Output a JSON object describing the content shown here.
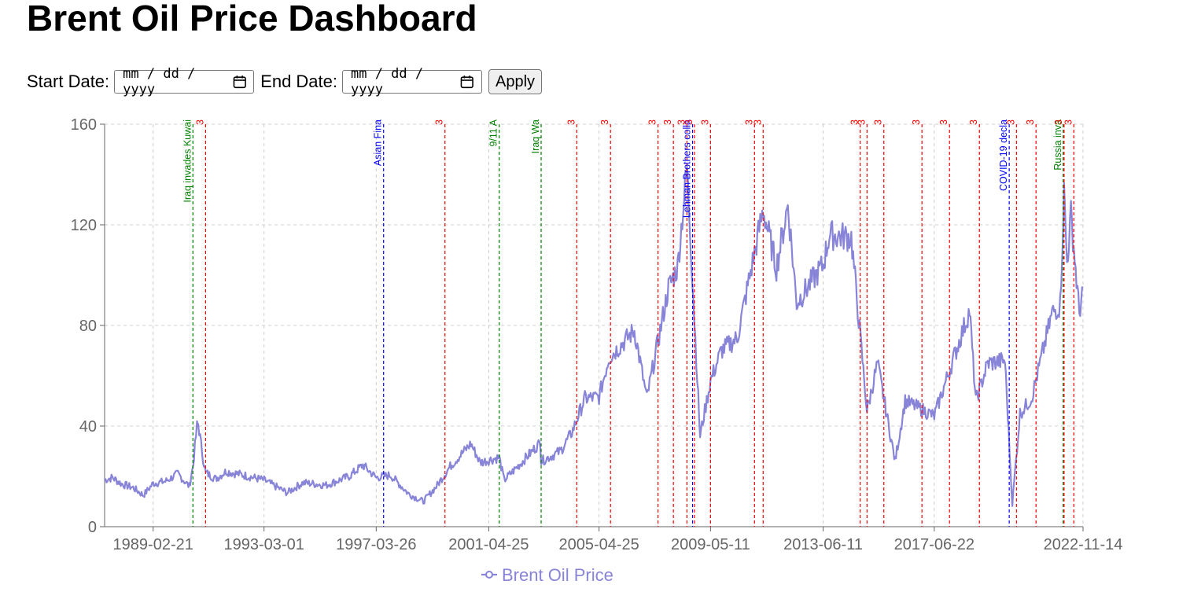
{
  "header": {
    "title": "Brent Oil Price Dashboard"
  },
  "filters": {
    "start_label": "Start Date:",
    "start_placeholder": "mm / dd / yyyy",
    "end_label": "End Date:",
    "end_placeholder": "mm / dd / yyyy",
    "apply_label": "Apply",
    "calendar_icon": "calendar-icon"
  },
  "chart_data": {
    "type": "line",
    "title": "",
    "xlabel": "",
    "ylabel": "",
    "xlim": [
      "1987-05-20",
      "2022-11-14"
    ],
    "ylim": [
      0,
      160
    ],
    "yticks": [
      0,
      40,
      80,
      120,
      160
    ],
    "xticks": [
      "1989-02-21",
      "1993-03-01",
      "1997-03-26",
      "2001-04-25",
      "2005-04-25",
      "2009-05-11",
      "2013-06-11",
      "2017-06-22",
      "2022-11-14"
    ],
    "grid": true,
    "legend_position": "bottom",
    "series": [
      {
        "name": "Brent Oil Price",
        "color": "#8884d8",
        "points": [
          [
            "1987-05-20",
            18.6
          ],
          [
            "1987-09-01",
            19.5
          ],
          [
            "1988-01-01",
            17.0
          ],
          [
            "1988-06-01",
            15.5
          ],
          [
            "1988-10-15",
            12.5
          ],
          [
            "1989-02-21",
            17.2
          ],
          [
            "1989-08-01",
            18.0
          ],
          [
            "1990-01-15",
            21.0
          ],
          [
            "1990-06-15",
            16.0
          ],
          [
            "1990-08-02",
            24.0
          ],
          [
            "1990-09-25",
            40.0
          ],
          [
            "1990-10-11",
            41.0
          ],
          [
            "1990-12-15",
            27.0
          ],
          [
            "1991-01-17",
            21.5
          ],
          [
            "1991-06-01",
            19.0
          ],
          [
            "1991-10-15",
            22.0
          ],
          [
            "1992-06-01",
            20.5
          ],
          [
            "1993-03-01",
            18.5
          ],
          [
            "1994-01-01",
            13.5
          ],
          [
            "1994-08-01",
            17.5
          ],
          [
            "1995-06-01",
            16.5
          ],
          [
            "1996-04-01",
            20.0
          ],
          [
            "1996-10-01",
            24.5
          ],
          [
            "1997-03-26",
            19.5
          ],
          [
            "1997-10-01",
            20.5
          ],
          [
            "1998-06-01",
            13.0
          ],
          [
            "1998-12-10",
            10.0
          ],
          [
            "1999-06-01",
            16.0
          ],
          [
            "1999-12-01",
            24.0
          ],
          [
            "2000-09-01",
            33.0
          ],
          [
            "2001-01-01",
            25.5
          ],
          [
            "2001-04-25",
            26.5
          ],
          [
            "2001-09-11",
            27.5
          ],
          [
            "2001-11-15",
            18.5
          ],
          [
            "2002-06-01",
            24.5
          ],
          [
            "2003-03-10",
            33.5
          ],
          [
            "2003-03-20",
            26.0
          ],
          [
            "2003-12-01",
            30.0
          ],
          [
            "2004-05-01",
            37.5
          ],
          [
            "2004-10-20",
            51.0
          ],
          [
            "2005-04-25",
            51.5
          ],
          [
            "2005-09-01",
            67.0
          ],
          [
            "2006-08-07",
            78.0
          ],
          [
            "2007-01-18",
            51.0
          ],
          [
            "2007-07-01",
            76.0
          ],
          [
            "2007-11-01",
            95.0
          ],
          [
            "2008-03-01",
            103.0
          ],
          [
            "2008-07-03",
            143.0
          ],
          [
            "2008-09-15",
            98.0
          ],
          [
            "2008-12-24",
            36.0
          ],
          [
            "2009-05-11",
            58.0
          ],
          [
            "2009-10-01",
            70.0
          ],
          [
            "2010-05-01",
            75.0
          ],
          [
            "2011-04-08",
            126.0
          ],
          [
            "2011-10-01",
            103.0
          ],
          [
            "2012-03-01",
            128.0
          ],
          [
            "2012-06-25",
            89.0
          ],
          [
            "2013-06-11",
            104.0
          ],
          [
            "2013-09-01",
            116.0
          ],
          [
            "2014-06-19",
            115.0
          ],
          [
            "2015-01-13",
            46.0
          ],
          [
            "2015-06-01",
            65.0
          ],
          [
            "2016-01-20",
            26.0
          ],
          [
            "2016-06-01",
            50.0
          ],
          [
            "2017-06-22",
            44.0
          ],
          [
            "2018-10-03",
            86.0
          ],
          [
            "2018-12-24",
            50.0
          ],
          [
            "2019-06-01",
            65.0
          ],
          [
            "2020-01-15",
            66.0
          ],
          [
            "2020-04-21",
            9.0
          ],
          [
            "2020-08-01",
            45.0
          ],
          [
            "2021-01-01",
            51.0
          ],
          [
            "2021-10-01",
            85.0
          ],
          [
            "2022-01-15",
            88.0
          ],
          [
            "2022-03-08",
            133.0
          ],
          [
            "2022-04-15",
            105.0
          ],
          [
            "2022-06-08",
            124.0
          ],
          [
            "2022-09-25",
            85.0
          ],
          [
            "2022-11-14",
            95.0
          ]
        ]
      }
    ],
    "event_lines": [
      {
        "date": "1990-08-02",
        "color": "#008000",
        "label": "Iraq invades Kuwai"
      },
      {
        "date": "1991-01-17",
        "color": "#ff0000",
        "label": "3"
      },
      {
        "date": "1997-07-02",
        "color": "#0000ff",
        "label": "Asian Fina"
      },
      {
        "date": "1999-09-23",
        "color": "#ff0000",
        "label": "3"
      },
      {
        "date": "2001-09-11",
        "color": "#008000",
        "label": "9/11 A"
      },
      {
        "date": "2003-03-20",
        "color": "#008000",
        "label": "Iraq Wa"
      },
      {
        "date": "2004-07-05",
        "color": "#ff0000",
        "label": "3"
      },
      {
        "date": "2005-09-24",
        "color": "#ff0000",
        "label": "3"
      },
      {
        "date": "2007-06-15",
        "color": "#ff0000",
        "label": "3"
      },
      {
        "date": "2008-01-05",
        "color": "#ff0000",
        "label": "3"
      },
      {
        "date": "2008-07-03",
        "color": "#ff0000",
        "label": "3"
      },
      {
        "date": "2008-09-15",
        "color": "#0000ff",
        "label": "Lehman Brothers colla"
      },
      {
        "date": "2008-10-10",
        "color": "#ff0000",
        "label": "3"
      },
      {
        "date": "2009-05-11",
        "color": "#ff0000",
        "label": "3"
      },
      {
        "date": "2010-12-15",
        "color": "#ff0000",
        "label": "3"
      },
      {
        "date": "2011-04-08",
        "color": "#ff0000",
        "label": "3"
      },
      {
        "date": "2014-10-15",
        "color": "#ff0000",
        "label": "3"
      },
      {
        "date": "2015-01-13",
        "color": "#ff0000",
        "label": "3"
      },
      {
        "date": "2015-08-24",
        "color": "#ff0000",
        "label": "3"
      },
      {
        "date": "2017-01-10",
        "color": "#ff0000",
        "label": "3"
      },
      {
        "date": "2018-01-10",
        "color": "#ff0000",
        "label": "3"
      },
      {
        "date": "2019-02-10",
        "color": "#ff0000",
        "label": "3"
      },
      {
        "date": "2020-03-11",
        "color": "#0000ff",
        "label": "COVID-19 decla"
      },
      {
        "date": "2020-06-15",
        "color": "#ff0000",
        "label": "3"
      },
      {
        "date": "2021-03-01",
        "color": "#ff0000",
        "label": "3"
      },
      {
        "date": "2022-02-24",
        "color": "#008000",
        "label": "Russia inva"
      },
      {
        "date": "2022-03-08",
        "color": "#ff0000",
        "label": "3"
      },
      {
        "date": "2022-07-15",
        "color": "#ff0000",
        "label": "3"
      }
    ]
  }
}
